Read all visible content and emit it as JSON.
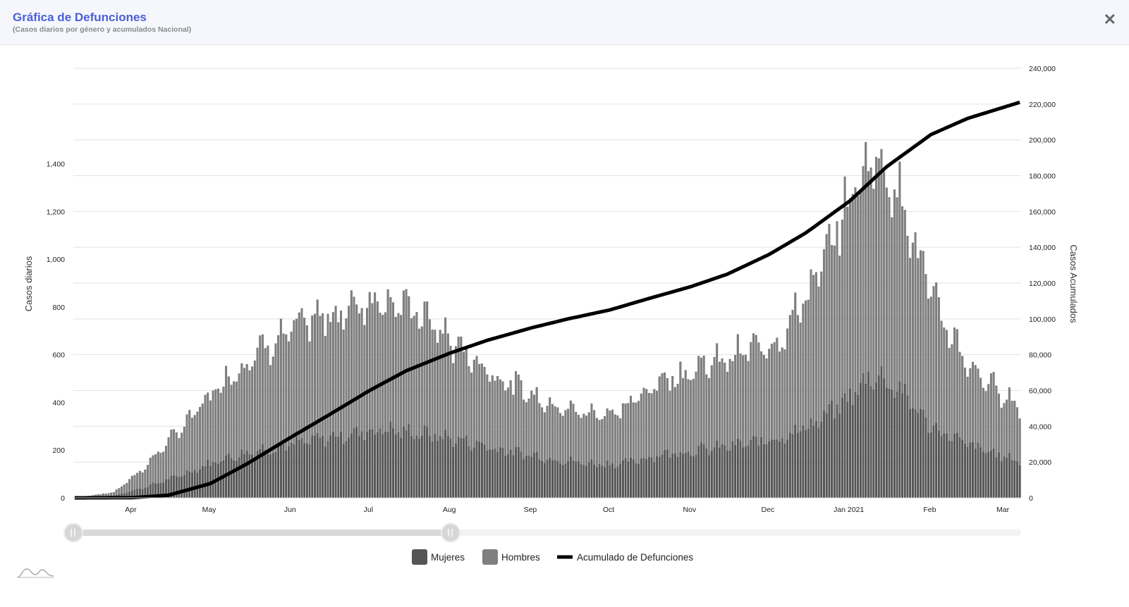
{
  "header": {
    "title": "Gráfica de Defunciones",
    "subtitle": "(Casos diarios por género y acumulados Nacional)",
    "close_icon": "close-icon"
  },
  "colors": {
    "mujeres": "#555555",
    "hombres": "#7f7f7f",
    "acumulado": "#000000",
    "title": "#4a5fd6"
  },
  "chart_data": {
    "type": "bar",
    "stacked": true,
    "xlabel": "",
    "ylabel": "Casos diarios",
    "y2label": "Casos Acumulados",
    "ylim": [
      0,
      1800
    ],
    "y2lim": [
      0,
      240000
    ],
    "yticks": [
      0,
      200,
      400,
      600,
      800,
      1000,
      1200,
      1400
    ],
    "ytick_labels": [
      "0",
      "200",
      "400",
      "600",
      "800",
      "1,000",
      "1,200",
      "1,400"
    ],
    "y2ticks": [
      0,
      20000,
      40000,
      60000,
      80000,
      100000,
      120000,
      140000,
      160000,
      180000,
      200000,
      220000,
      240000
    ],
    "y2tick_labels": [
      "0",
      "20,000",
      "40,000",
      "60,000",
      "80,000",
      "100,000",
      "120,000",
      "140,000",
      "160,000",
      "180,000",
      "200,000",
      "220,000",
      "240,000"
    ],
    "x_start": "2020-03-10",
    "x_end": "2021-03-07",
    "x_tick_labels": [
      "Apr",
      "May",
      "Jun",
      "Jul",
      "Aug",
      "Sep",
      "Oct",
      "Nov",
      "Dec",
      "Jan 2021",
      "Feb",
      "Mar"
    ],
    "x_tick_dates": [
      "2020-04-01",
      "2020-05-01",
      "2020-06-01",
      "2020-07-01",
      "2020-08-01",
      "2020-09-01",
      "2020-10-01",
      "2020-11-01",
      "2020-12-01",
      "2021-01-01",
      "2021-02-01",
      "2021-03-01"
    ],
    "grid": true,
    "legend_position": "bottom-center",
    "series": [
      {
        "name": "Mujeres",
        "type": "bar",
        "anchor_dates": [
          "2020-03-10",
          "2020-03-25",
          "2020-04-05",
          "2020-04-20",
          "2020-05-05",
          "2020-05-20",
          "2020-06-05",
          "2020-06-20",
          "2020-07-05",
          "2020-07-20",
          "2020-08-05",
          "2020-08-20",
          "2020-09-05",
          "2020-09-20",
          "2020-10-05",
          "2020-10-20",
          "2020-11-05",
          "2020-11-20",
          "2020-12-05",
          "2020-12-20",
          "2021-01-01",
          "2021-01-10",
          "2021-01-20",
          "2021-02-01",
          "2021-02-15",
          "2021-03-07"
        ],
        "anchor_values": [
          0,
          8,
          40,
          95,
          160,
          200,
          230,
          260,
          285,
          270,
          240,
          200,
          170,
          145,
          140,
          180,
          200,
          220,
          250,
          320,
          420,
          520,
          450,
          300,
          220,
          150
        ]
      },
      {
        "name": "Hombres",
        "type": "bar",
        "anchor_dates": [
          "2020-03-10",
          "2020-03-25",
          "2020-04-05",
          "2020-04-20",
          "2020-05-05",
          "2020-05-20",
          "2020-06-05",
          "2020-06-20",
          "2020-07-05",
          "2020-07-20",
          "2020-08-05",
          "2020-08-20",
          "2020-09-05",
          "2020-09-20",
          "2020-10-05",
          "2020-10-20",
          "2020-11-05",
          "2020-11-20",
          "2020-12-05",
          "2020-12-20",
          "2021-01-01",
          "2021-01-10",
          "2021-01-20",
          "2021-02-01",
          "2021-02-15",
          "2021-03-07"
        ],
        "anchor_values": [
          0,
          15,
          80,
          200,
          320,
          420,
          490,
          520,
          560,
          500,
          380,
          300,
          240,
          210,
          220,
          310,
          350,
          380,
          420,
          610,
          840,
          930,
          820,
          550,
          330,
          230
        ]
      },
      {
        "name": "Acumulado de Defunciones",
        "type": "line",
        "axis": "right",
        "anchor_dates": [
          "2020-03-10",
          "2020-04-01",
          "2020-04-15",
          "2020-05-01",
          "2020-05-15",
          "2020-06-01",
          "2020-06-15",
          "2020-07-01",
          "2020-07-15",
          "2020-08-01",
          "2020-08-15",
          "2020-09-01",
          "2020-09-15",
          "2020-10-01",
          "2020-10-15",
          "2020-11-01",
          "2020-11-15",
          "2020-12-01",
          "2020-12-15",
          "2021-01-01",
          "2021-01-15",
          "2021-02-01",
          "2021-02-15",
          "2021-03-07"
        ],
        "anchor_values": [
          0,
          100,
          1500,
          8000,
          19000,
          34000,
          46000,
          60000,
          71000,
          81000,
          88000,
          95000,
          100000,
          105000,
          111000,
          118000,
          125000,
          136000,
          148000,
          166000,
          185000,
          203000,
          212000,
          221000
        ]
      }
    ]
  },
  "navigator": {
    "handle_icon": "drag-handle-icon"
  },
  "logo": {
    "icon": "highcharts-logo-icon"
  },
  "legend": {
    "items": [
      {
        "label": "Mujeres",
        "icon": "legend-swatch-mujeres"
      },
      {
        "label": "Hombres",
        "icon": "legend-swatch-hombres"
      },
      {
        "label": "Acumulado de Defunciones",
        "icon": "legend-line-acumulado"
      }
    ]
  }
}
